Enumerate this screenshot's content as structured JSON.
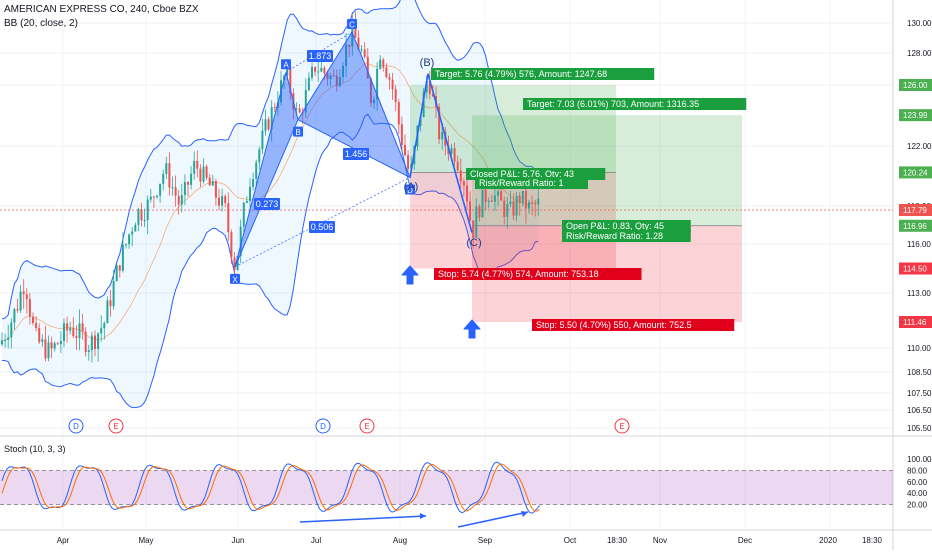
{
  "header": {
    "title": "AMERICAN EXPRESS CO, 240, Cboe BZX",
    "indicator": "BB (20, close, 2)"
  },
  "stoch_label": "Stoch (10, 3, 3)",
  "chart_data": {
    "type": "candlestick",
    "price_axis": {
      "ticks": [
        "130.00",
        "128.00",
        "126.00",
        "123.99",
        "122.00",
        "120.24",
        "117.79",
        "116.96",
        "116.00",
        "114.50",
        "113.00",
        "111.46",
        "110.00",
        "108.50",
        "107.50",
        "106.50",
        "105.50"
      ],
      "grid_ticks": [
        130,
        128,
        126,
        122,
        118,
        116,
        113,
        110,
        108.5,
        107.5,
        106.5,
        105.5
      ],
      "tick_text": [
        "130.00",
        "128.00",
        "122.00",
        "118.00",
        "116.00",
        "113.00",
        "110.00",
        "108.50",
        "107.50",
        "106.50",
        "105.50"
      ],
      "badges": [
        {
          "label": "126.00",
          "color": "#4caf50"
        },
        {
          "label": "123.99",
          "color": "#4caf50"
        },
        {
          "label": "120.24",
          "color": "#4caf50"
        },
        {
          "label": "117.79",
          "color": "#ef5350"
        },
        {
          "label": "116.96",
          "color": "#4caf50"
        },
        {
          "label": "114.50",
          "color": "#f23645"
        },
        {
          "label": "111.46",
          "color": "#f23645"
        }
      ]
    },
    "stoch_axis": {
      "ticks": [
        "100.00",
        "80.00",
        "60.00",
        "40.00",
        "20.00"
      ],
      "ylim": [
        0,
        100
      ]
    },
    "time_axis": [
      "Apr",
      "May",
      "Jun",
      "Jul",
      "Aug",
      "Sep",
      "Oct",
      "18:30",
      "Nov",
      "Dec",
      "2020",
      "18:30"
    ],
    "current_price": 117.79,
    "pattern": {
      "points": [
        {
          "label": "X",
          "price": 114.6
        },
        {
          "label": "A",
          "price": 126.8
        },
        {
          "label": "B",
          "price": 123.7
        },
        {
          "label": "C",
          "price": 129.4
        },
        {
          "label": "D",
          "price": 119.9
        }
      ],
      "ratios": [
        "1.873",
        "0.273",
        "1.456",
        "0.506"
      ],
      "point_labels": [
        "(B)",
        "(A)",
        "(C)"
      ]
    },
    "positions": [
      {
        "target": "Target: 5.76 (4.79%) 576, Amount: 1247.68",
        "stop": "Stop: 5.74 (4.77%) 574, Amount: 753.18",
        "closed": "Closed P&L: 5.76, Qty: 43",
        "rr": "Risk/Reward Ratio: 1",
        "entry": 120.24,
        "tp": 126.0,
        "sl": 114.5
      },
      {
        "target": "Target: 7.03 (6.01%) 703, Amount: 1316.35",
        "stop": "Stop: 5.50 (4.70%) 550, Amount: 752.5",
        "open": "Open P&L: 0.83, Qty: 45",
        "rr": "Risk/Reward Ratio: 1.28",
        "entry": 116.96,
        "tp": 123.99,
        "sl": 111.46
      }
    ],
    "events": [
      "D",
      "E",
      "D",
      "E",
      "E"
    ],
    "stoch_levels": [
      80,
      20
    ]
  },
  "colors": {
    "up": "#26a69a",
    "down": "#ef5350",
    "band": "#2962ff",
    "pattern": "#2962ff",
    "profit": "#4caf50",
    "loss": "#f23645",
    "stoch": "#e1bee7"
  }
}
